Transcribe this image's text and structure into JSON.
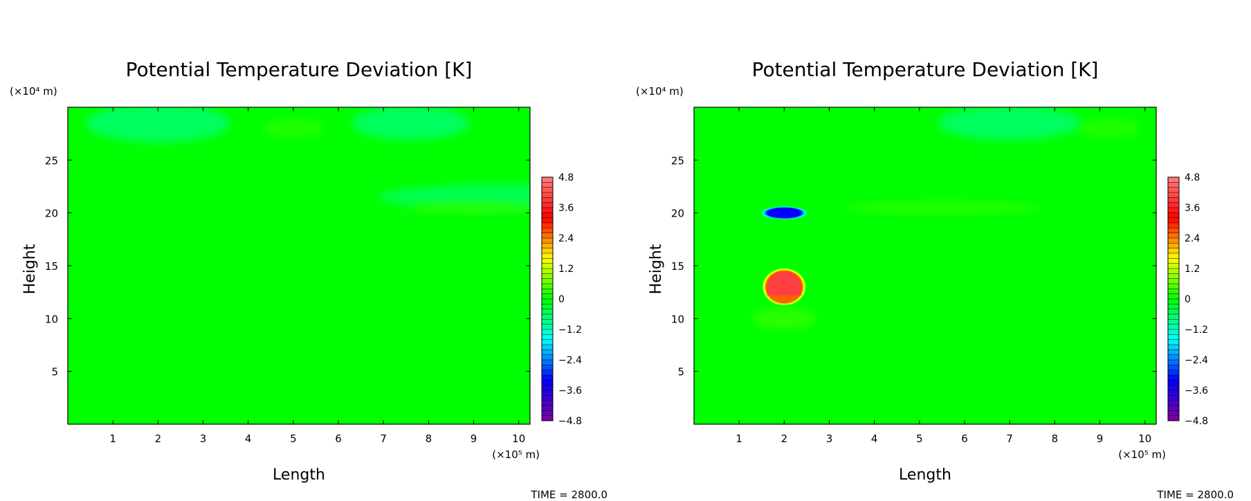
{
  "chart_data": [
    {
      "type": "heatmap",
      "title": "Potential Temperature Deviation [K]",
      "xlabel": "Length",
      "ylabel": "Height",
      "x_unit": "(×10⁵ m)",
      "y_unit": "(×10⁴ m)",
      "xlim": [
        0,
        10.25
      ],
      "ylim": [
        0,
        30
      ],
      "x_ticks": [
        "1",
        "2",
        "3",
        "4",
        "5",
        "6",
        "7",
        "8",
        "9",
        "10"
      ],
      "y_ticks": [
        "5",
        "10",
        "15",
        "20",
        "25"
      ],
      "colorbar": {
        "range": [
          -4.8,
          4.8
        ],
        "tick_labels": [
          "4.8",
          "3.6",
          "2.4",
          "1.2",
          "0",
          "−1.2",
          "−2.4",
          "−3.6",
          "−4.8"
        ],
        "colors": [
          "#8000a0",
          "#0000ff",
          "#00ffff",
          "#00ff00",
          "#ffff00",
          "#ff0000",
          "#ff8080"
        ]
      },
      "features": [
        {
          "x": 2.0,
          "y": 28.5,
          "value": -0.7
        },
        {
          "x": 7.6,
          "y": 28.5,
          "value": -0.7
        },
        {
          "x": 5.0,
          "y": 28.0,
          "value": 0.2
        },
        {
          "x": 9.5,
          "y": 21.5,
          "value": -0.6
        },
        {
          "x": 9.0,
          "y": 20.5,
          "value": 0.3
        }
      ],
      "time_label": "TIME =  2800.0"
    },
    {
      "type": "heatmap",
      "title": "Potential Temperature Deviation [K]",
      "xlabel": "Length",
      "ylabel": "Height",
      "x_unit": "(×10⁵ m)",
      "y_unit": "(×10⁴ m)",
      "xlim": [
        0,
        10.25
      ],
      "ylim": [
        0,
        30
      ],
      "x_ticks": [
        "1",
        "2",
        "3",
        "4",
        "5",
        "6",
        "7",
        "8",
        "9",
        "10"
      ],
      "y_ticks": [
        "5",
        "10",
        "15",
        "20",
        "25"
      ],
      "colorbar": {
        "range": [
          -4.8,
          4.8
        ],
        "tick_labels": [
          "4.8",
          "3.6",
          "2.4",
          "1.2",
          "0",
          "−1.2",
          "−2.4",
          "−3.6",
          "−4.8"
        ],
        "colors": [
          "#8000a0",
          "#0000ff",
          "#00ffff",
          "#00ff00",
          "#ffff00",
          "#ff0000",
          "#ff8080"
        ]
      },
      "features": [
        {
          "x": 2.0,
          "y": 13.0,
          "value": 4.0
        },
        {
          "x": 2.0,
          "y": 20.0,
          "value": -3.2
        },
        {
          "x": 7.0,
          "y": 28.5,
          "value": -0.7
        },
        {
          "x": 9.2,
          "y": 28.0,
          "value": 0.2
        },
        {
          "x": 5.5,
          "y": 20.5,
          "value": 0.3
        },
        {
          "x": 2.0,
          "y": 10.0,
          "value": 0.3
        }
      ],
      "time_label": "TIME =  2800.0"
    }
  ]
}
